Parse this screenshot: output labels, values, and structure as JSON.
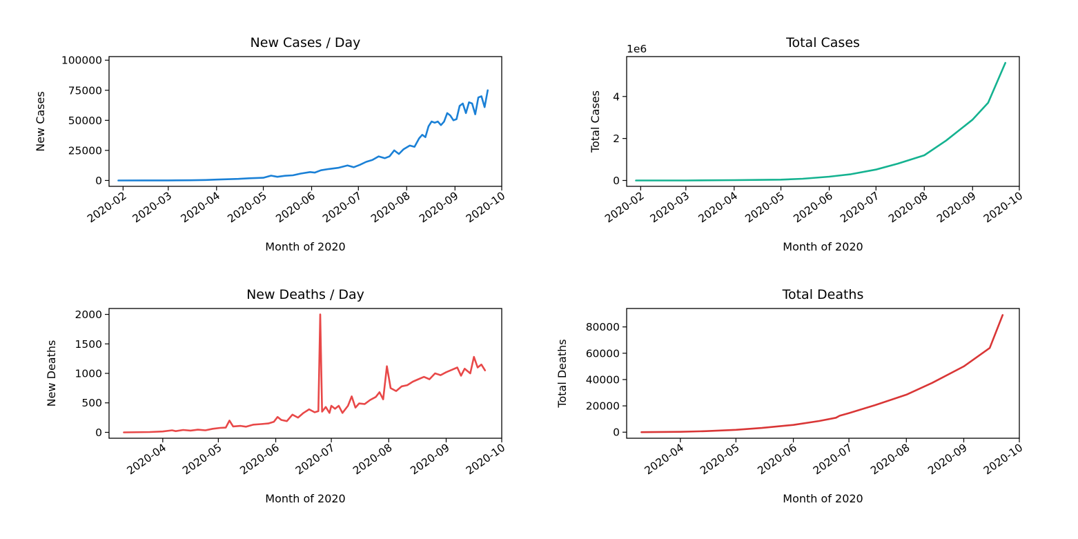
{
  "chart_data": [
    {
      "id": "new-cases",
      "type": "line",
      "title": "New Cases / Day",
      "xlabel": "Month of 2020",
      "ylabel": "New Cases",
      "color": "#1a80d6",
      "grid": false,
      "x_start": "2020-01-29",
      "x_end": "2020-09-22",
      "xlim": [
        "2020-01-23",
        "2020-10-01"
      ],
      "ylim": [
        -4900,
        103000
      ],
      "yticks": [
        0,
        25000,
        50000,
        75000,
        100000
      ],
      "ytick_labels": [
        "0",
        "25000",
        "50000",
        "75000",
        "100000"
      ],
      "xticks": [
        "2020-02-01",
        "2020-03-01",
        "2020-04-01",
        "2020-05-01",
        "2020-06-01",
        "2020-07-01",
        "2020-08-01",
        "2020-09-01",
        "2020-10-01"
      ],
      "xtick_labels": [
        "2020-02",
        "2020-03",
        "2020-04",
        "2020-05",
        "2020-06",
        "2020-07",
        "2020-08",
        "2020-09",
        "2020-10"
      ],
      "offset_label": "",
      "points": [
        [
          "2020-01-29",
          0
        ],
        [
          "2020-02-15",
          10
        ],
        [
          "2020-03-01",
          30
        ],
        [
          "2020-03-15",
          150
        ],
        [
          "2020-03-25",
          400
        ],
        [
          "2020-04-01",
          700
        ],
        [
          "2020-04-08",
          1000
        ],
        [
          "2020-04-15",
          1300
        ],
        [
          "2020-04-22",
          1800
        ],
        [
          "2020-05-01",
          2200
        ],
        [
          "2020-05-06",
          4000
        ],
        [
          "2020-05-10",
          3000
        ],
        [
          "2020-05-15",
          3900
        ],
        [
          "2020-05-20",
          4300
        ],
        [
          "2020-05-25",
          5700
        ],
        [
          "2020-05-31",
          7000
        ],
        [
          "2020-06-03",
          6500
        ],
        [
          "2020-06-07",
          8500
        ],
        [
          "2020-06-12",
          9500
        ],
        [
          "2020-06-18",
          10500
        ],
        [
          "2020-06-24",
          12500
        ],
        [
          "2020-06-28",
          11000
        ],
        [
          "2020-07-02",
          13000
        ],
        [
          "2020-07-06",
          15500
        ],
        [
          "2020-07-10",
          17000
        ],
        [
          "2020-07-14",
          20000
        ],
        [
          "2020-07-18",
          18500
        ],
        [
          "2020-07-21",
          20000
        ],
        [
          "2020-07-24",
          25000
        ],
        [
          "2020-07-27",
          22000
        ],
        [
          "2020-07-30",
          26000
        ],
        [
          "2020-08-03",
          29000
        ],
        [
          "2020-08-06",
          28000
        ],
        [
          "2020-08-09",
          35000
        ],
        [
          "2020-08-11",
          38000
        ],
        [
          "2020-08-13",
          36000
        ],
        [
          "2020-08-15",
          45000
        ],
        [
          "2020-08-17",
          49000
        ],
        [
          "2020-08-19",
          48000
        ],
        [
          "2020-08-21",
          49000
        ],
        [
          "2020-08-23",
          46000
        ],
        [
          "2020-08-25",
          49000
        ],
        [
          "2020-08-27",
          56000
        ],
        [
          "2020-08-29",
          54000
        ],
        [
          "2020-08-31",
          50000
        ],
        [
          "2020-09-02",
          51000
        ],
        [
          "2020-09-04",
          62000
        ],
        [
          "2020-09-06",
          64000
        ],
        [
          "2020-09-08",
          56000
        ],
        [
          "2020-09-10",
          65000
        ],
        [
          "2020-09-12",
          64000
        ],
        [
          "2020-09-14",
          55000
        ],
        [
          "2020-09-16",
          69000
        ],
        [
          "2020-09-18",
          70000
        ],
        [
          "2020-09-20",
          61000
        ],
        [
          "2020-09-22",
          75000
        ]
      ]
    },
    {
      "id": "total-cases",
      "type": "line",
      "title": "Total Cases",
      "xlabel": "Month of 2020",
      "ylabel": "Total Cases",
      "color": "#14b290",
      "grid": false,
      "x_start": "2020-01-29",
      "x_end": "2020-09-22",
      "xlim": [
        "2020-01-23",
        "2020-10-01"
      ],
      "ylim": [
        -280000,
        5900000
      ],
      "yticks": [
        0,
        2000000,
        4000000
      ],
      "ytick_labels": [
        "0",
        "2",
        "4"
      ],
      "xticks": [
        "2020-02-01",
        "2020-03-01",
        "2020-04-01",
        "2020-05-01",
        "2020-06-01",
        "2020-07-01",
        "2020-08-01",
        "2020-09-01",
        "2020-10-01"
      ],
      "xtick_labels": [
        "2020-02",
        "2020-03",
        "2020-04",
        "2020-05",
        "2020-06",
        "2020-07",
        "2020-08",
        "2020-09",
        "2020-10"
      ],
      "offset_label": "1e6",
      "points": [
        [
          "2020-01-29",
          0
        ],
        [
          "2020-03-01",
          1000
        ],
        [
          "2020-04-01",
          15000
        ],
        [
          "2020-04-15",
          25000
        ],
        [
          "2020-05-01",
          40000
        ],
        [
          "2020-05-15",
          80000
        ],
        [
          "2020-06-01",
          180000
        ],
        [
          "2020-06-15",
          300000
        ],
        [
          "2020-07-01",
          520000
        ],
        [
          "2020-07-15",
          800000
        ],
        [
          "2020-08-01",
          1200000
        ],
        [
          "2020-08-15",
          1900000
        ],
        [
          "2020-09-01",
          2900000
        ],
        [
          "2020-09-11",
          3700000
        ],
        [
          "2020-09-22",
          5600000
        ]
      ]
    },
    {
      "id": "new-deaths",
      "type": "line",
      "title": "New Deaths / Day",
      "xlabel": "Month of 2020",
      "ylabel": "New Deaths",
      "color": "#e84848",
      "grid": false,
      "x_start": "2020-03-11",
      "x_end": "2020-09-22",
      "xlim": [
        "2020-03-03",
        "2020-10-01"
      ],
      "ylim": [
        -100,
        2100
      ],
      "yticks": [
        0,
        500,
        1000,
        1500,
        2000
      ],
      "ytick_labels": [
        "0",
        "500",
        "1000",
        "1500",
        "2000"
      ],
      "xticks": [
        "2020-04-01",
        "2020-05-01",
        "2020-06-01",
        "2020-07-01",
        "2020-08-01",
        "2020-09-01",
        "2020-10-01"
      ],
      "xtick_labels": [
        "2020-04",
        "2020-05",
        "2020-06",
        "2020-07",
        "2020-08",
        "2020-09",
        "2020-10"
      ],
      "offset_label": "",
      "points": [
        [
          "2020-03-11",
          0
        ],
        [
          "2020-03-25",
          5
        ],
        [
          "2020-04-01",
          15
        ],
        [
          "2020-04-06",
          35
        ],
        [
          "2020-04-08",
          20
        ],
        [
          "2020-04-12",
          40
        ],
        [
          "2020-04-16",
          30
        ],
        [
          "2020-04-20",
          45
        ],
        [
          "2020-04-24",
          35
        ],
        [
          "2020-04-28",
          60
        ],
        [
          "2020-05-02",
          75
        ],
        [
          "2020-05-05",
          80
        ],
        [
          "2020-05-07",
          200
        ],
        [
          "2020-05-09",
          100
        ],
        [
          "2020-05-13",
          110
        ],
        [
          "2020-05-16",
          95
        ],
        [
          "2020-05-20",
          130
        ],
        [
          "2020-05-24",
          140
        ],
        [
          "2020-05-28",
          150
        ],
        [
          "2020-05-31",
          180
        ],
        [
          "2020-06-02",
          260
        ],
        [
          "2020-06-04",
          210
        ],
        [
          "2020-06-07",
          190
        ],
        [
          "2020-06-10",
          300
        ],
        [
          "2020-06-13",
          250
        ],
        [
          "2020-06-16",
          330
        ],
        [
          "2020-06-19",
          390
        ],
        [
          "2020-06-22",
          340
        ],
        [
          "2020-06-24",
          360
        ],
        [
          "2020-06-25",
          2000
        ],
        [
          "2020-06-26",
          350
        ],
        [
          "2020-06-28",
          430
        ],
        [
          "2020-06-30",
          330
        ],
        [
          "2020-07-01",
          450
        ],
        [
          "2020-07-03",
          400
        ],
        [
          "2020-07-05",
          450
        ],
        [
          "2020-07-07",
          330
        ],
        [
          "2020-07-10",
          450
        ],
        [
          "2020-07-12",
          610
        ],
        [
          "2020-07-14",
          420
        ],
        [
          "2020-07-16",
          490
        ],
        [
          "2020-07-19",
          480
        ],
        [
          "2020-07-22",
          550
        ],
        [
          "2020-07-25",
          600
        ],
        [
          "2020-07-27",
          680
        ],
        [
          "2020-07-29",
          560
        ],
        [
          "2020-07-31",
          1120
        ],
        [
          "2020-08-02",
          750
        ],
        [
          "2020-08-05",
          700
        ],
        [
          "2020-08-08",
          780
        ],
        [
          "2020-08-11",
          800
        ],
        [
          "2020-08-14",
          860
        ],
        [
          "2020-08-17",
          900
        ],
        [
          "2020-08-20",
          940
        ],
        [
          "2020-08-23",
          900
        ],
        [
          "2020-08-26",
          1000
        ],
        [
          "2020-08-29",
          970
        ],
        [
          "2020-09-01",
          1020
        ],
        [
          "2020-09-04",
          1060
        ],
        [
          "2020-09-07",
          1100
        ],
        [
          "2020-09-09",
          960
        ],
        [
          "2020-09-11",
          1080
        ],
        [
          "2020-09-14",
          1000
        ],
        [
          "2020-09-16",
          1280
        ],
        [
          "2020-09-18",
          1100
        ],
        [
          "2020-09-20",
          1150
        ],
        [
          "2020-09-22",
          1050
        ]
      ]
    },
    {
      "id": "total-deaths",
      "type": "line",
      "title": "Total Deaths",
      "xlabel": "Month of 2020",
      "ylabel": "Total Deaths",
      "color": "#d93636",
      "grid": false,
      "x_start": "2020-03-11",
      "x_end": "2020-09-22",
      "xlim": [
        "2020-03-03",
        "2020-10-01"
      ],
      "ylim": [
        -4600,
        94000
      ],
      "yticks": [
        0,
        20000,
        40000,
        60000,
        80000
      ],
      "ytick_labels": [
        "0",
        "20000",
        "40000",
        "60000",
        "80000"
      ],
      "xticks": [
        "2020-04-01",
        "2020-05-01",
        "2020-06-01",
        "2020-07-01",
        "2020-08-01",
        "2020-09-01",
        "2020-10-01"
      ],
      "xtick_labels": [
        "2020-04",
        "2020-05",
        "2020-06",
        "2020-07",
        "2020-08",
        "2020-09",
        "2020-10"
      ],
      "offset_label": "",
      "points": [
        [
          "2020-03-11",
          0
        ],
        [
          "2020-04-01",
          300
        ],
        [
          "2020-04-15",
          800
        ],
        [
          "2020-05-01",
          1800
        ],
        [
          "2020-05-15",
          3200
        ],
        [
          "2020-06-01",
          5500
        ],
        [
          "2020-06-15",
          8500
        ],
        [
          "2020-06-24",
          11000
        ],
        [
          "2020-06-26",
          12500
        ],
        [
          "2020-07-01",
          14500
        ],
        [
          "2020-07-15",
          20500
        ],
        [
          "2020-08-01",
          28500
        ],
        [
          "2020-08-15",
          37500
        ],
        [
          "2020-09-01",
          50000
        ],
        [
          "2020-09-15",
          64000
        ],
        [
          "2020-09-22",
          89000
        ]
      ]
    }
  ]
}
